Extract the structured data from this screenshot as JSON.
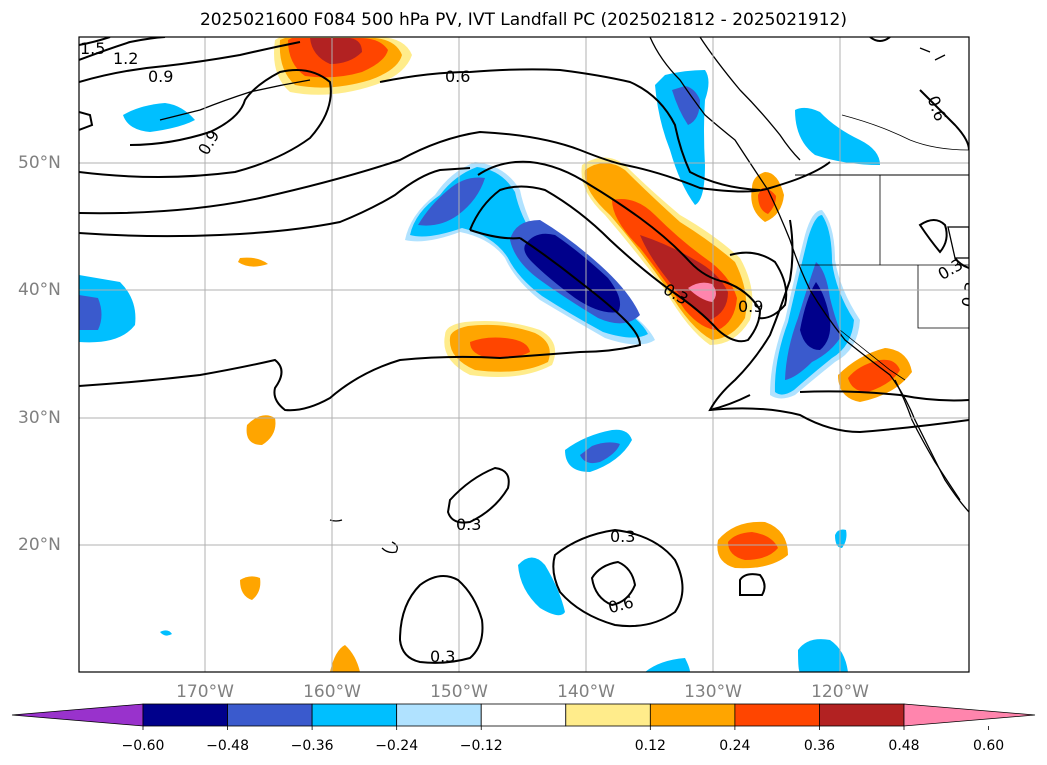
{
  "title": "2025021600 F084 500 hPa PV, IVT Landfall PC (2025021812 - 2025021912)",
  "lat_labels": [
    "50°N",
    "40°N",
    "30°N",
    "20°N"
  ],
  "lon_labels": [
    "170°W",
    "160°W",
    "150°W",
    "140°W",
    "130°W",
    "120°W"
  ],
  "contour_labels": [
    "1.5",
    "1.2",
    "0.9",
    "0.9",
    "0.6",
    "0.6",
    "0.3",
    "0.9",
    "0.3",
    "0.3",
    "0.3",
    "0.6",
    "0.3",
    "0.3"
  ],
  "colorbar": {
    "ticks": [
      "−0.60",
      "−0.48",
      "−0.36",
      "−0.24",
      "−0.12",
      "0.12",
      "0.24",
      "0.36",
      "0.48",
      "0.60"
    ],
    "colors": [
      "#9932cc",
      "#00008b",
      "#3a5acd",
      "#00bfff",
      "#b0e2ff",
      "#ffffff",
      "#ffec8b",
      "#ffa500",
      "#ff4500",
      "#b22222",
      "#ff85ad"
    ]
  }
}
